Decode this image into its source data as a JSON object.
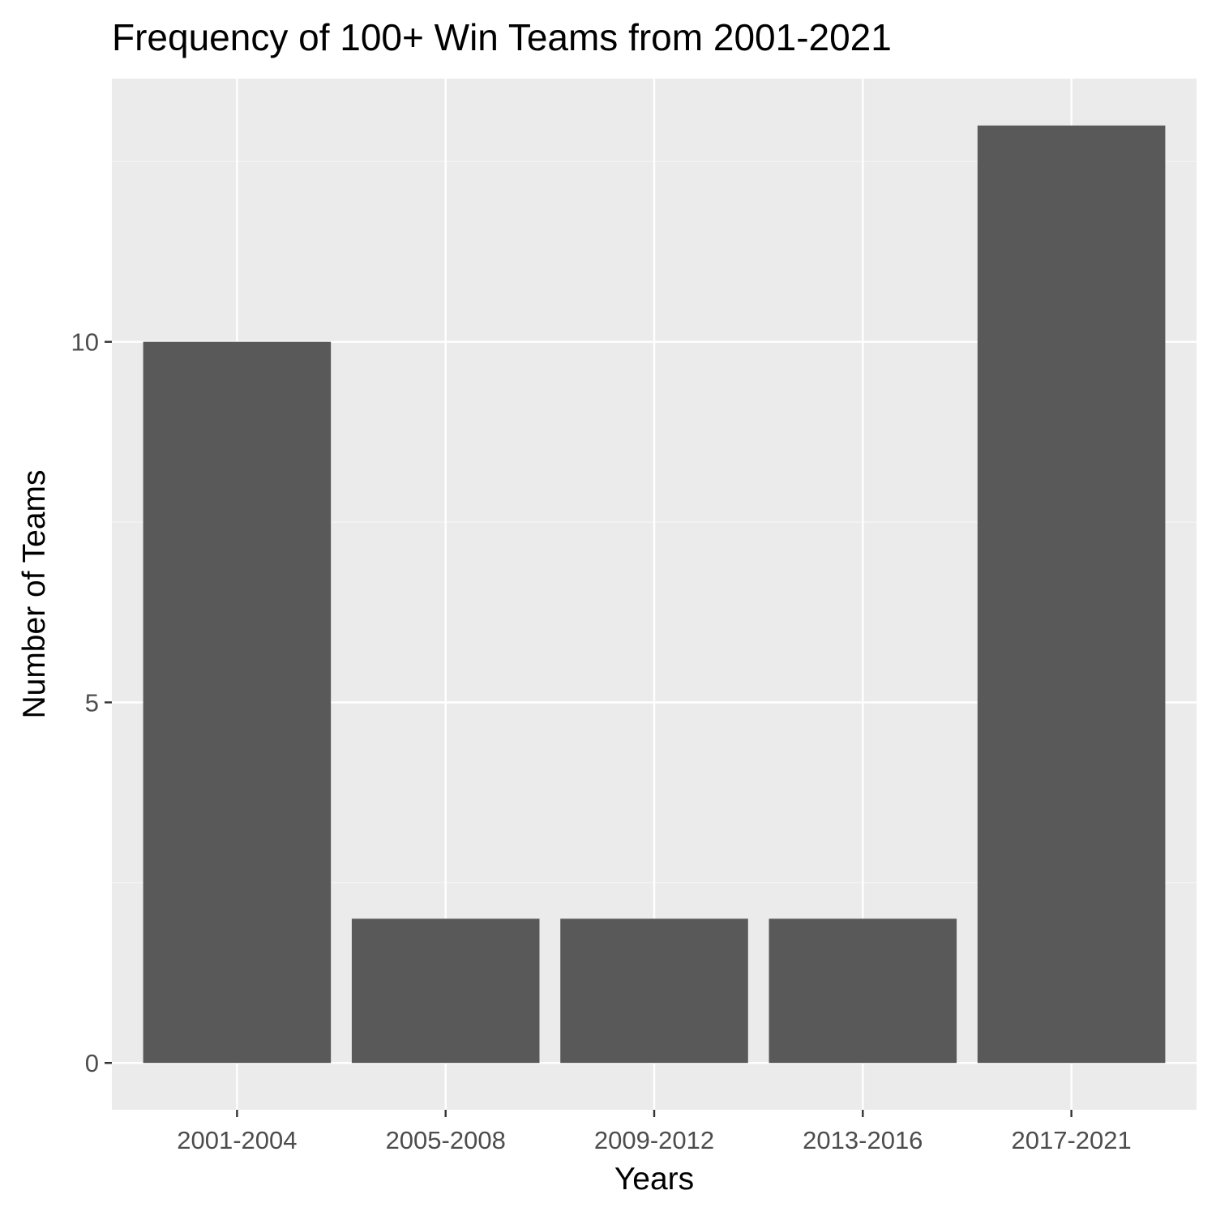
{
  "chart_data": {
    "type": "bar",
    "title": "Frequency of 100+ Win Teams from 2001-2021",
    "xlabel": "Years",
    "ylabel": "Number of Teams",
    "categories": [
      "2001-2004",
      "2005-2008",
      "2009-2012",
      "2013-2016",
      "2017-2021"
    ],
    "values": [
      10,
      2,
      2,
      2,
      13
    ],
    "ylim": [
      -0.65,
      13.65
    ],
    "y_ticks": [
      0,
      5,
      10
    ],
    "y_tick_labels": [
      "0",
      "5",
      "10"
    ],
    "grid": true,
    "legend": "none",
    "colors": {
      "bar": "#595959",
      "panel_background": "#ebebeb",
      "grid_major": "#ffffff",
      "grid_minor": "#f5f5f5",
      "tick_label": "#4d4d4d",
      "text": "#000000"
    }
  }
}
